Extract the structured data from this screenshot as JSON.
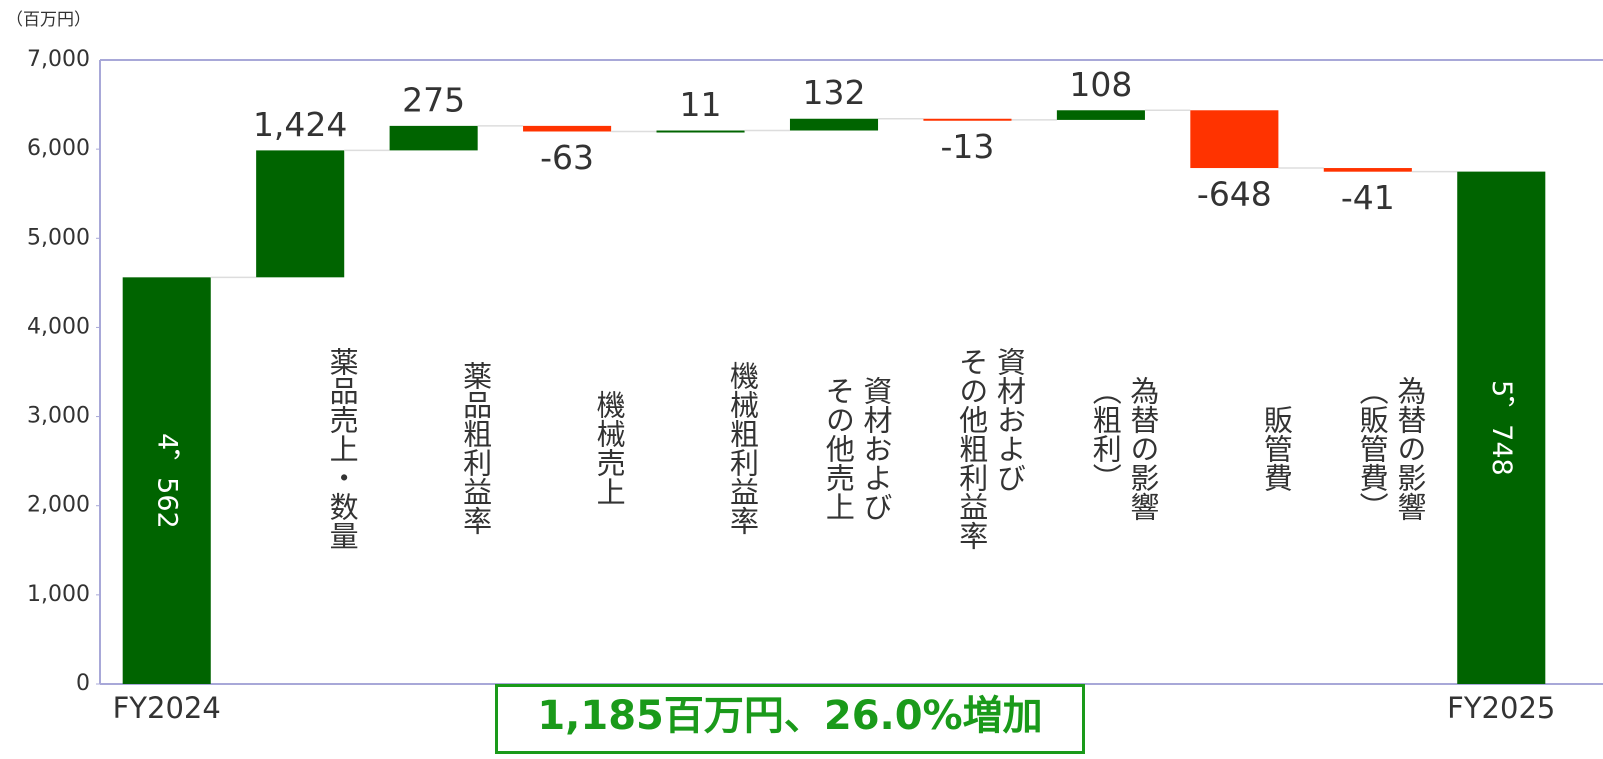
{
  "chart_data": {
    "type": "waterfall",
    "unit_label": "（百万円）",
    "annotation": "1,185百万円、26.0%増加",
    "categories": [
      "FY2024",
      "薬品売上・数量",
      "薬品粗利益率",
      "機械売上",
      "機械粗利益率",
      "資材および\nその他売上",
      "資材および\nその他粗利益率",
      "為替の影響\n（粗利）",
      "販管費",
      "為替の影響\n（販管費）",
      "FY2025"
    ],
    "values": [
      4562,
      1424,
      275,
      -63,
      11,
      132,
      -13,
      108,
      -648,
      -41,
      5748
    ],
    "value_labels": [
      "4，562",
      "1,424",
      "275",
      "-63",
      "11",
      "132",
      "-13",
      "108",
      "-648",
      "-41",
      "5，748"
    ],
    "colors": {
      "total": "#006400",
      "increase": "#006400",
      "decrease": "#ff3300"
    },
    "ylim": [
      0,
      7000
    ],
    "yticks": [
      0,
      {
        "value": 1000,
        "label": "1,000"
      },
      {
        "value": 2000,
        "label": "2,000"
      },
      {
        "value": 3000,
        "label": "3,000"
      },
      {
        "value": 4000,
        "label": "4,000"
      },
      {
        "value": 5000,
        "label": "5,000"
      },
      {
        "value": 6000,
        "label": "6,000"
      },
      {
        "value": 7000,
        "label": "7,000"
      }
    ]
  }
}
